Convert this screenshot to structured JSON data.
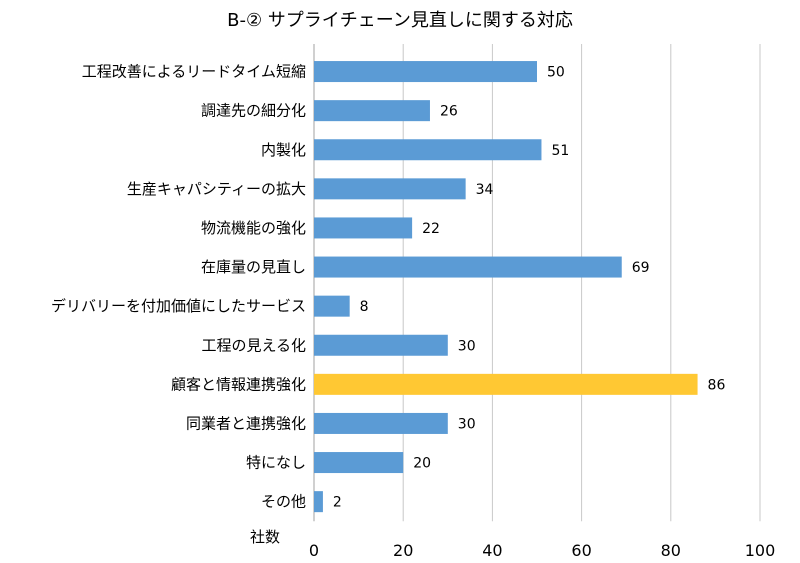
{
  "chart_data": {
    "type": "bar",
    "orientation": "horizontal",
    "title": "B-② サプライチェーン見直しに関する対応",
    "xlabel": "社数",
    "ylabel": "",
    "xlim": [
      0,
      100
    ],
    "xticks": [
      0,
      20,
      40,
      60,
      80,
      100
    ],
    "grid": "vertical gridlines on",
    "legend": "none",
    "colors": {
      "default": "#5B9BD5",
      "highlight": "#FFC833",
      "grid": "#C8C8C8"
    },
    "categories": [
      "工程改善によるリードタイム短縮",
      "調達先の細分化",
      "内製化",
      "生産キャパシティーの拡大",
      "物流機能の強化",
      "在庫量の見直し",
      "デリバリーを付加価値にしたサービス",
      "工程の見える化",
      "顧客と情報連携強化",
      "同業者と連携強化",
      "特になし",
      "その他"
    ],
    "values": [
      50,
      26,
      51,
      34,
      22,
      69,
      8,
      30,
      86,
      30,
      20,
      2
    ],
    "highlight_index": 8
  }
}
